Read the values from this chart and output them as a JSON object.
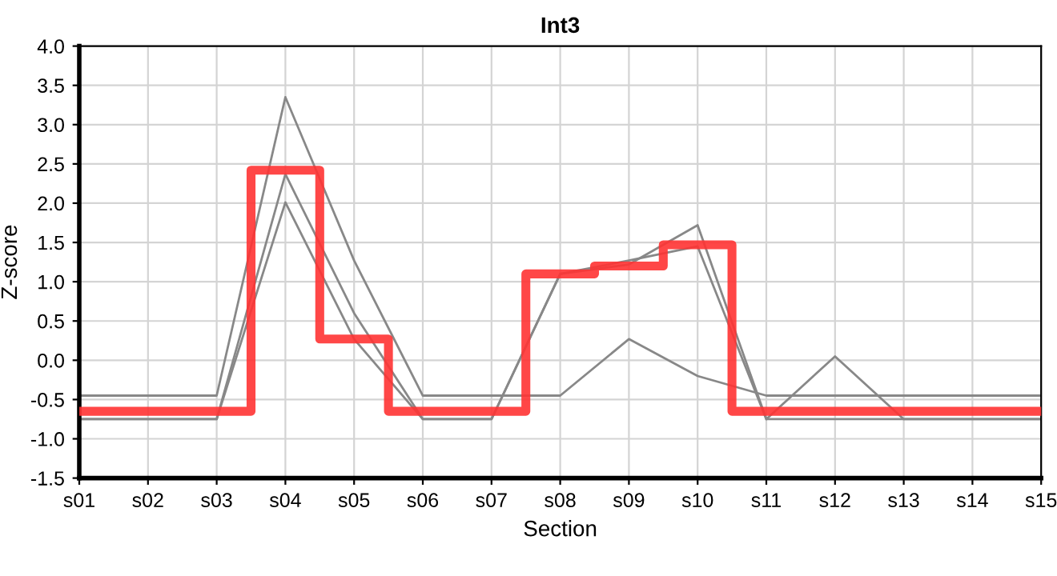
{
  "chart_data": {
    "type": "line",
    "title": "Int3",
    "xlabel": "Section",
    "ylabel": "Z-score",
    "categories": [
      "s01",
      "s02",
      "s03",
      "s04",
      "s05",
      "s06",
      "s07",
      "s08",
      "s09",
      "s10",
      "s11",
      "s12",
      "s13",
      "s14",
      "s15"
    ],
    "series": [
      {
        "color": "#888888",
        "values": [
          -0.45,
          -0.45,
          -0.45,
          3.35,
          1.27,
          -0.45,
          -0.45,
          -0.45,
          0.27,
          -0.2,
          -0.45,
          -0.45,
          -0.45,
          -0.45,
          -0.45
        ]
      },
      {
        "color": "#888888",
        "values": [
          -0.75,
          -0.75,
          -0.75,
          2.37,
          0.6,
          -0.75,
          -0.75,
          1.1,
          1.27,
          1.45,
          -0.75,
          0.05,
          -0.75,
          -0.75,
          -0.75
        ]
      },
      {
        "color": "#888888",
        "values": [
          -0.75,
          -0.75,
          -0.75,
          2.01,
          0.27,
          -0.75,
          -0.75,
          1.1,
          1.22,
          1.72,
          -0.75,
          -0.75,
          -0.75,
          -0.75,
          -0.75
        ]
      },
      {
        "type": "step",
        "color": "#ff3333",
        "values": [
          -0.65,
          -0.65,
          -0.65,
          2.42,
          0.27,
          -0.65,
          -0.65,
          1.1,
          1.2,
          1.47,
          -0.65,
          -0.65,
          -0.65,
          -0.65,
          -0.65
        ]
      }
    ],
    "ylim": [
      -1.5,
      4.0
    ],
    "yticks": [
      {
        "value": -1.5,
        "label": "-1.5"
      },
      {
        "value": -1.0,
        "label": "-1.0"
      },
      {
        "value": -0.5,
        "label": "-0.5"
      },
      {
        "value": 0.0,
        "label": "0.0"
      },
      {
        "value": 0.5,
        "label": "0.5"
      },
      {
        "value": 1.0,
        "label": "1.0"
      },
      {
        "value": 1.5,
        "label": "1.5"
      },
      {
        "value": 2.0,
        "label": "2.0"
      },
      {
        "value": 2.5,
        "label": "2.5"
      },
      {
        "value": 3.0,
        "label": "3.0"
      },
      {
        "value": 3.5,
        "label": "3.5"
      },
      {
        "value": 4.0,
        "label": "4.0"
      }
    ],
    "grid": true,
    "marker": "none",
    "line_style": "solid"
  }
}
